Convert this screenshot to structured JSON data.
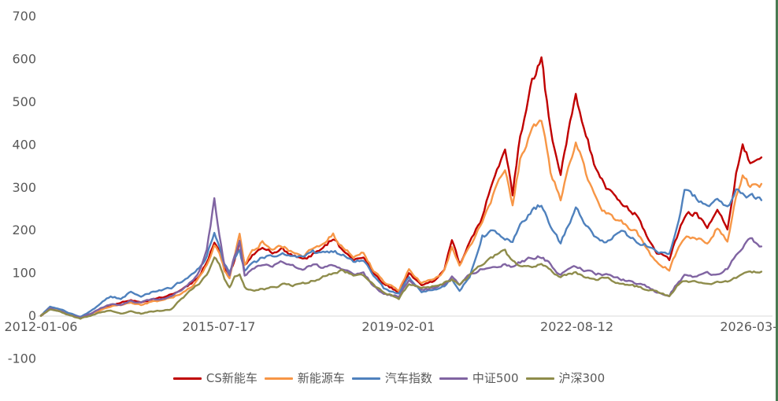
{
  "window": {
    "background_color": "#FFFFFF",
    "right_edge_border_color": "#4A7A52"
  },
  "axis_style": {
    "label_color": "#595959",
    "axis_line_color": "#D9D9D9"
  },
  "chart_data": {
    "type": "line",
    "title": "",
    "xlabel": "",
    "ylabel": "",
    "grid": false,
    "legend_position": "bottom",
    "ylim": [
      -100,
      700
    ],
    "y_ticks": [
      700,
      600,
      500,
      400,
      300,
      200,
      100,
      0,
      -100
    ],
    "y_tick_labels": [
      "700",
      "600",
      "500",
      "400",
      "300",
      "200",
      "100",
      "0",
      "-100"
    ],
    "x_tick_labels": [
      "2012-01-06",
      "2015-07-17",
      "2019-02-01",
      "2022-08-12",
      "2026-03-"
    ],
    "x_tick_years": [
      2012.02,
      2015.54,
      2019.09,
      2022.62,
      2026.22
    ],
    "x_unit": "decimal_year",
    "x": [
      2012.02,
      2012.2,
      2012.4,
      2012.6,
      2012.8,
      2013.0,
      2013.2,
      2013.4,
      2013.6,
      2013.8,
      2014.0,
      2014.2,
      2014.4,
      2014.6,
      2014.8,
      2015.0,
      2015.15,
      2015.3,
      2015.45,
      2015.55,
      2015.65,
      2015.75,
      2015.85,
      2015.95,
      2016.05,
      2016.2,
      2016.4,
      2016.6,
      2016.8,
      2017.0,
      2017.2,
      2017.4,
      2017.6,
      2017.8,
      2018.0,
      2018.2,
      2018.4,
      2018.6,
      2018.8,
      2019.1,
      2019.3,
      2019.55,
      2019.8,
      2020.0,
      2020.15,
      2020.3,
      2020.5,
      2020.75,
      2021.0,
      2021.2,
      2021.35,
      2021.5,
      2021.7,
      2021.92,
      2022.1,
      2022.3,
      2022.6,
      2022.8,
      2023.0,
      2023.2,
      2023.5,
      2023.8,
      2024.0,
      2024.2,
      2024.45,
      2024.6,
      2024.75,
      2024.95,
      2025.2,
      2025.4,
      2025.6,
      2025.77,
      2025.9,
      2026.05,
      2026.27
    ],
    "series": [
      {
        "name": "CS新能车",
        "color": "#C00000",
        "values": [
          0,
          18,
          10,
          2,
          -5,
          5,
          15,
          25,
          30,
          38,
          30,
          38,
          42,
          50,
          60,
          75,
          95,
          125,
          170,
          150,
          110,
          95,
          130,
          175,
          115,
          140,
          160,
          150,
          155,
          140,
          130,
          145,
          160,
          180,
          150,
          130,
          140,
          100,
          75,
          55,
          100,
          70,
          80,
          110,
          175,
          120,
          170,
          230,
          330,
          385,
          285,
          420,
          540,
          595,
          430,
          335,
          528,
          420,
          345,
          300,
          260,
          235,
          190,
          150,
          130,
          185,
          235,
          240,
          210,
          250,
          195,
          330,
          390,
          360,
          370
        ]
      },
      {
        "name": "新能源车",
        "color": "#F79646",
        "values": [
          0,
          20,
          12,
          3,
          -5,
          3,
          12,
          22,
          25,
          30,
          25,
          32,
          35,
          42,
          52,
          68,
          88,
          120,
          165,
          145,
          105,
          90,
          135,
          190,
          120,
          150,
          172,
          158,
          162,
          150,
          140,
          155,
          170,
          188,
          160,
          138,
          148,
          105,
          80,
          60,
          110,
          75,
          85,
          105,
          160,
          115,
          165,
          215,
          295,
          340,
          260,
          370,
          420,
          462,
          340,
          270,
          408,
          330,
          270,
          240,
          218,
          195,
          155,
          125,
          108,
          150,
          185,
          185,
          165,
          205,
          170,
          280,
          330,
          300,
          308
        ]
      },
      {
        "name": "汽车指数",
        "color": "#4F81BD",
        "values": [
          0,
          22,
          15,
          5,
          -3,
          10,
          30,
          45,
          40,
          55,
          45,
          55,
          60,
          65,
          80,
          95,
          110,
          140,
          195,
          160,
          120,
          105,
          130,
          150,
          105,
          120,
          135,
          140,
          148,
          140,
          135,
          148,
          145,
          152,
          140,
          125,
          130,
          95,
          65,
          50,
          90,
          55,
          60,
          70,
          85,
          60,
          90,
          185,
          200,
          185,
          170,
          210,
          240,
          262,
          210,
          170,
          250,
          215,
          185,
          170,
          200,
          175,
          165,
          150,
          140,
          200,
          290,
          275,
          255,
          270,
          250,
          290,
          285,
          280,
          270
        ]
      },
      {
        "name": "中证500",
        "color": "#8064A2",
        "values": [
          0,
          17,
          10,
          2,
          -5,
          5,
          18,
          28,
          25,
          35,
          30,
          38,
          40,
          45,
          60,
          80,
          105,
          150,
          273,
          190,
          120,
          95,
          140,
          173,
          95,
          110,
          120,
          118,
          125,
          118,
          112,
          120,
          112,
          118,
          110,
          95,
          100,
          70,
          50,
          45,
          85,
          60,
          65,
          75,
          90,
          70,
          95,
          110,
          110,
          120,
          115,
          125,
          135,
          138,
          120,
          95,
          115,
          105,
          98,
          95,
          85,
          75,
          68,
          55,
          48,
          75,
          95,
          90,
          100,
          95,
          110,
          140,
          160,
          180,
          162
        ]
      },
      {
        "name": "沪深300",
        "color": "#8E8C4B",
        "values": [
          0,
          15,
          8,
          0,
          -7,
          0,
          8,
          12,
          5,
          10,
          5,
          10,
          12,
          15,
          40,
          60,
          75,
          95,
          140,
          120,
          85,
          65,
          90,
          100,
          65,
          58,
          62,
          65,
          72,
          70,
          75,
          82,
          90,
          98,
          108,
          92,
          95,
          72,
          55,
          40,
          75,
          62,
          70,
          78,
          85,
          70,
          95,
          120,
          140,
          150,
          125,
          120,
          115,
          120,
          105,
          90,
          100,
          88,
          85,
          88,
          75,
          68,
          60,
          55,
          45,
          70,
          82,
          78,
          72,
          80,
          78,
          88,
          95,
          100,
          103
        ]
      }
    ]
  }
}
